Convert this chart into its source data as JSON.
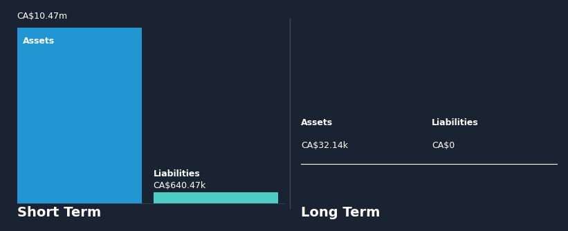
{
  "background_color": "#1a2332",
  "short_term": {
    "assets_label": "Assets",
    "assets_value": 10470000,
    "assets_value_label": "CA$10.47m",
    "assets_color": "#2196d3",
    "liabilities_label": "Liabilities",
    "liabilities_value": 640470,
    "liabilities_value_label": "CA$640.47k",
    "liabilities_color": "#4ecdc4",
    "section_label": "Short Term"
  },
  "long_term": {
    "assets_label": "Assets",
    "assets_value_label": "CA$32.14k",
    "liabilities_label": "Liabilities",
    "liabilities_value_label": "CA$0",
    "section_label": "Long Term"
  },
  "text_color": "#ffffff",
  "divider_color": "#ffffff",
  "font_size_labels": 9,
  "font_size_values": 9,
  "font_size_section": 14,
  "font_size_bar_label": 9,
  "font_size_top_label": 9
}
